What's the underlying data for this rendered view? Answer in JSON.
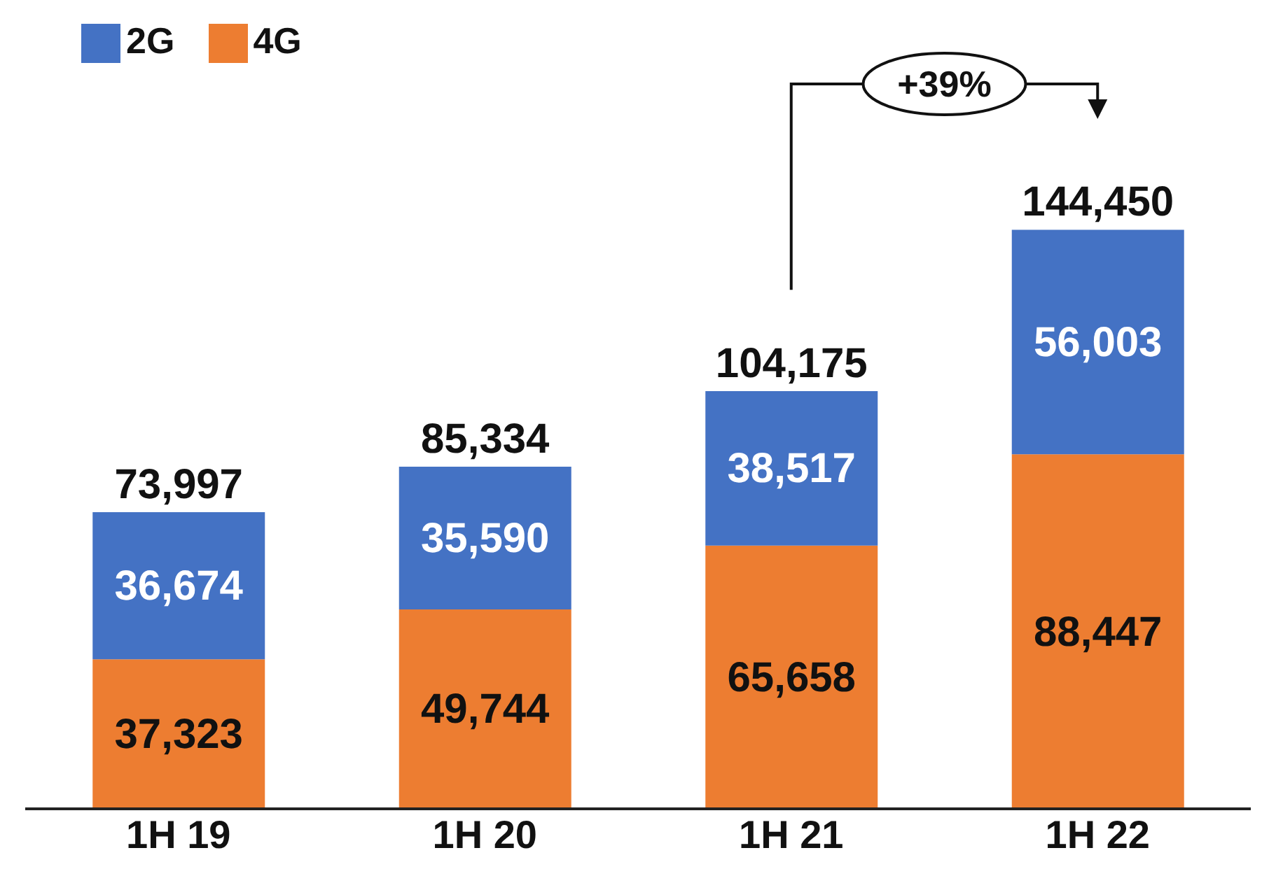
{
  "chart_data": {
    "type": "bar",
    "stacked": true,
    "categories": [
      "1H 19",
      "1H 20",
      "1H 21",
      "1H 22"
    ],
    "series": [
      {
        "name": "4G",
        "color": "#ed7d31",
        "values": [
          37323,
          49744,
          65658,
          88447
        ],
        "value_labels": [
          "37,323",
          "49,744",
          "65,658",
          "88,447"
        ]
      },
      {
        "name": "2G",
        "color": "#4472c4",
        "values": [
          36674,
          35590,
          38517,
          56003
        ],
        "value_labels": [
          "36,674",
          "35,590",
          "38,517",
          "56,003"
        ]
      }
    ],
    "totals": [
      "73,997",
      "85,334",
      "104,175",
      "144,450"
    ],
    "legend": "top left",
    "grid": false,
    "tick_labels": "x",
    "annotations": [
      "+39%"
    ]
  }
}
